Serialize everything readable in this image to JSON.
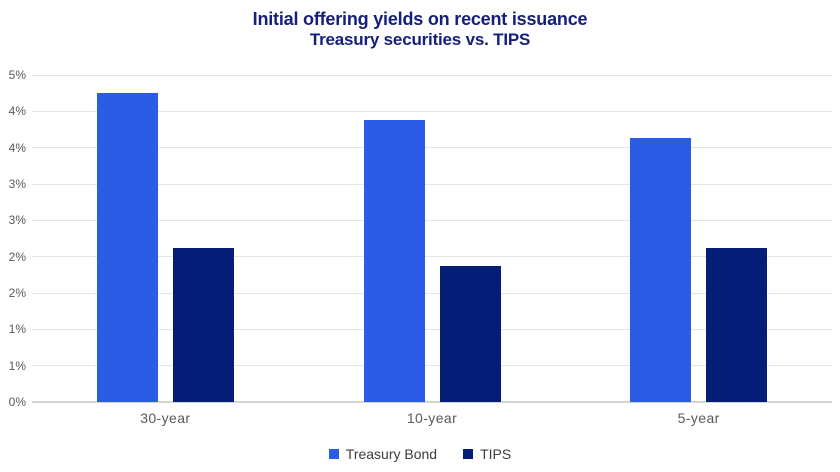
{
  "title": {
    "line1": "Initial offering yields on recent issuance",
    "line2": "Treasury securities vs. TIPS"
  },
  "chart_data": {
    "type": "bar",
    "title": "Initial offering yields on recent issuance",
    "subtitle": "Treasury securities vs. TIPS",
    "categories": [
      "30-year",
      "10-year",
      "5-year"
    ],
    "series": [
      {
        "name": "Treasury Bond",
        "color": "#2B5CE6",
        "values": [
          4.73,
          4.31,
          4.03
        ]
      },
      {
        "name": "TIPS",
        "color": "#041E78",
        "values": [
          2.36,
          2.08,
          2.36
        ]
      }
    ],
    "xlabel": "",
    "ylabel": "",
    "ylim": [
      0,
      5
    ],
    "ytick_labels_top_to_bottom": [
      "5%",
      "4%",
      "4%",
      "3%",
      "3%",
      "2%",
      "2%",
      "1%",
      "1%",
      "0%"
    ],
    "ytick_values_top_to_bottom": [
      5.0,
      4.44,
      3.89,
      3.33,
      2.78,
      2.22,
      1.67,
      1.11,
      0.56,
      0.0
    ],
    "grid": true,
    "legend_position": "bottom"
  },
  "colors": {
    "title": "#14207C",
    "grid": "#E5E5E5",
    "baseline": "#D4D4D4",
    "tick_text": "#595959",
    "legend_text": "#3C3C3C",
    "treasury_bond": "#2B5CE6",
    "tips": "#041E78"
  }
}
